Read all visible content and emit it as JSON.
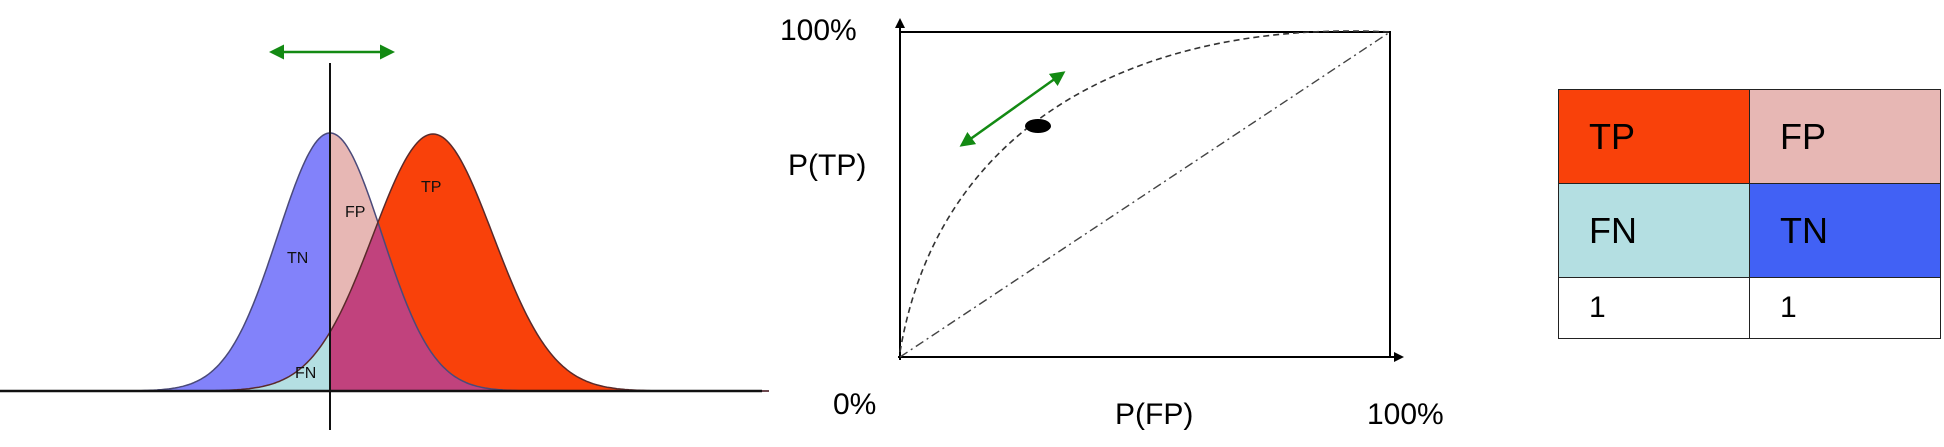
{
  "distributions": {
    "labels": {
      "tn": "TN",
      "fp": "FP",
      "tp": "TP",
      "fn": "FN"
    },
    "colors": {
      "tn": "#8282fa",
      "fp": "#e7b7b4",
      "tp": "#f9410a",
      "fn": "#b4dfe2",
      "overlap": "#c1427d"
    }
  },
  "roc": {
    "y_top_label": "100%",
    "y_label": "P(TP)",
    "origin_label": "0%",
    "x_label": "P(FP)",
    "x_right_label": "100%"
  },
  "arrow_color": "#138a13",
  "table": {
    "rows": [
      [
        {
          "text": "TP",
          "color": "#f9410a"
        },
        {
          "text": "FP",
          "color": "#e7b7b4"
        }
      ],
      [
        {
          "text": "FN",
          "color": "#b4dfe2"
        },
        {
          "text": "TN",
          "color": "#4161f5"
        }
      ],
      [
        {
          "text": "1",
          "color": "#ffffff"
        },
        {
          "text": "1",
          "color": "#ffffff"
        }
      ]
    ]
  }
}
